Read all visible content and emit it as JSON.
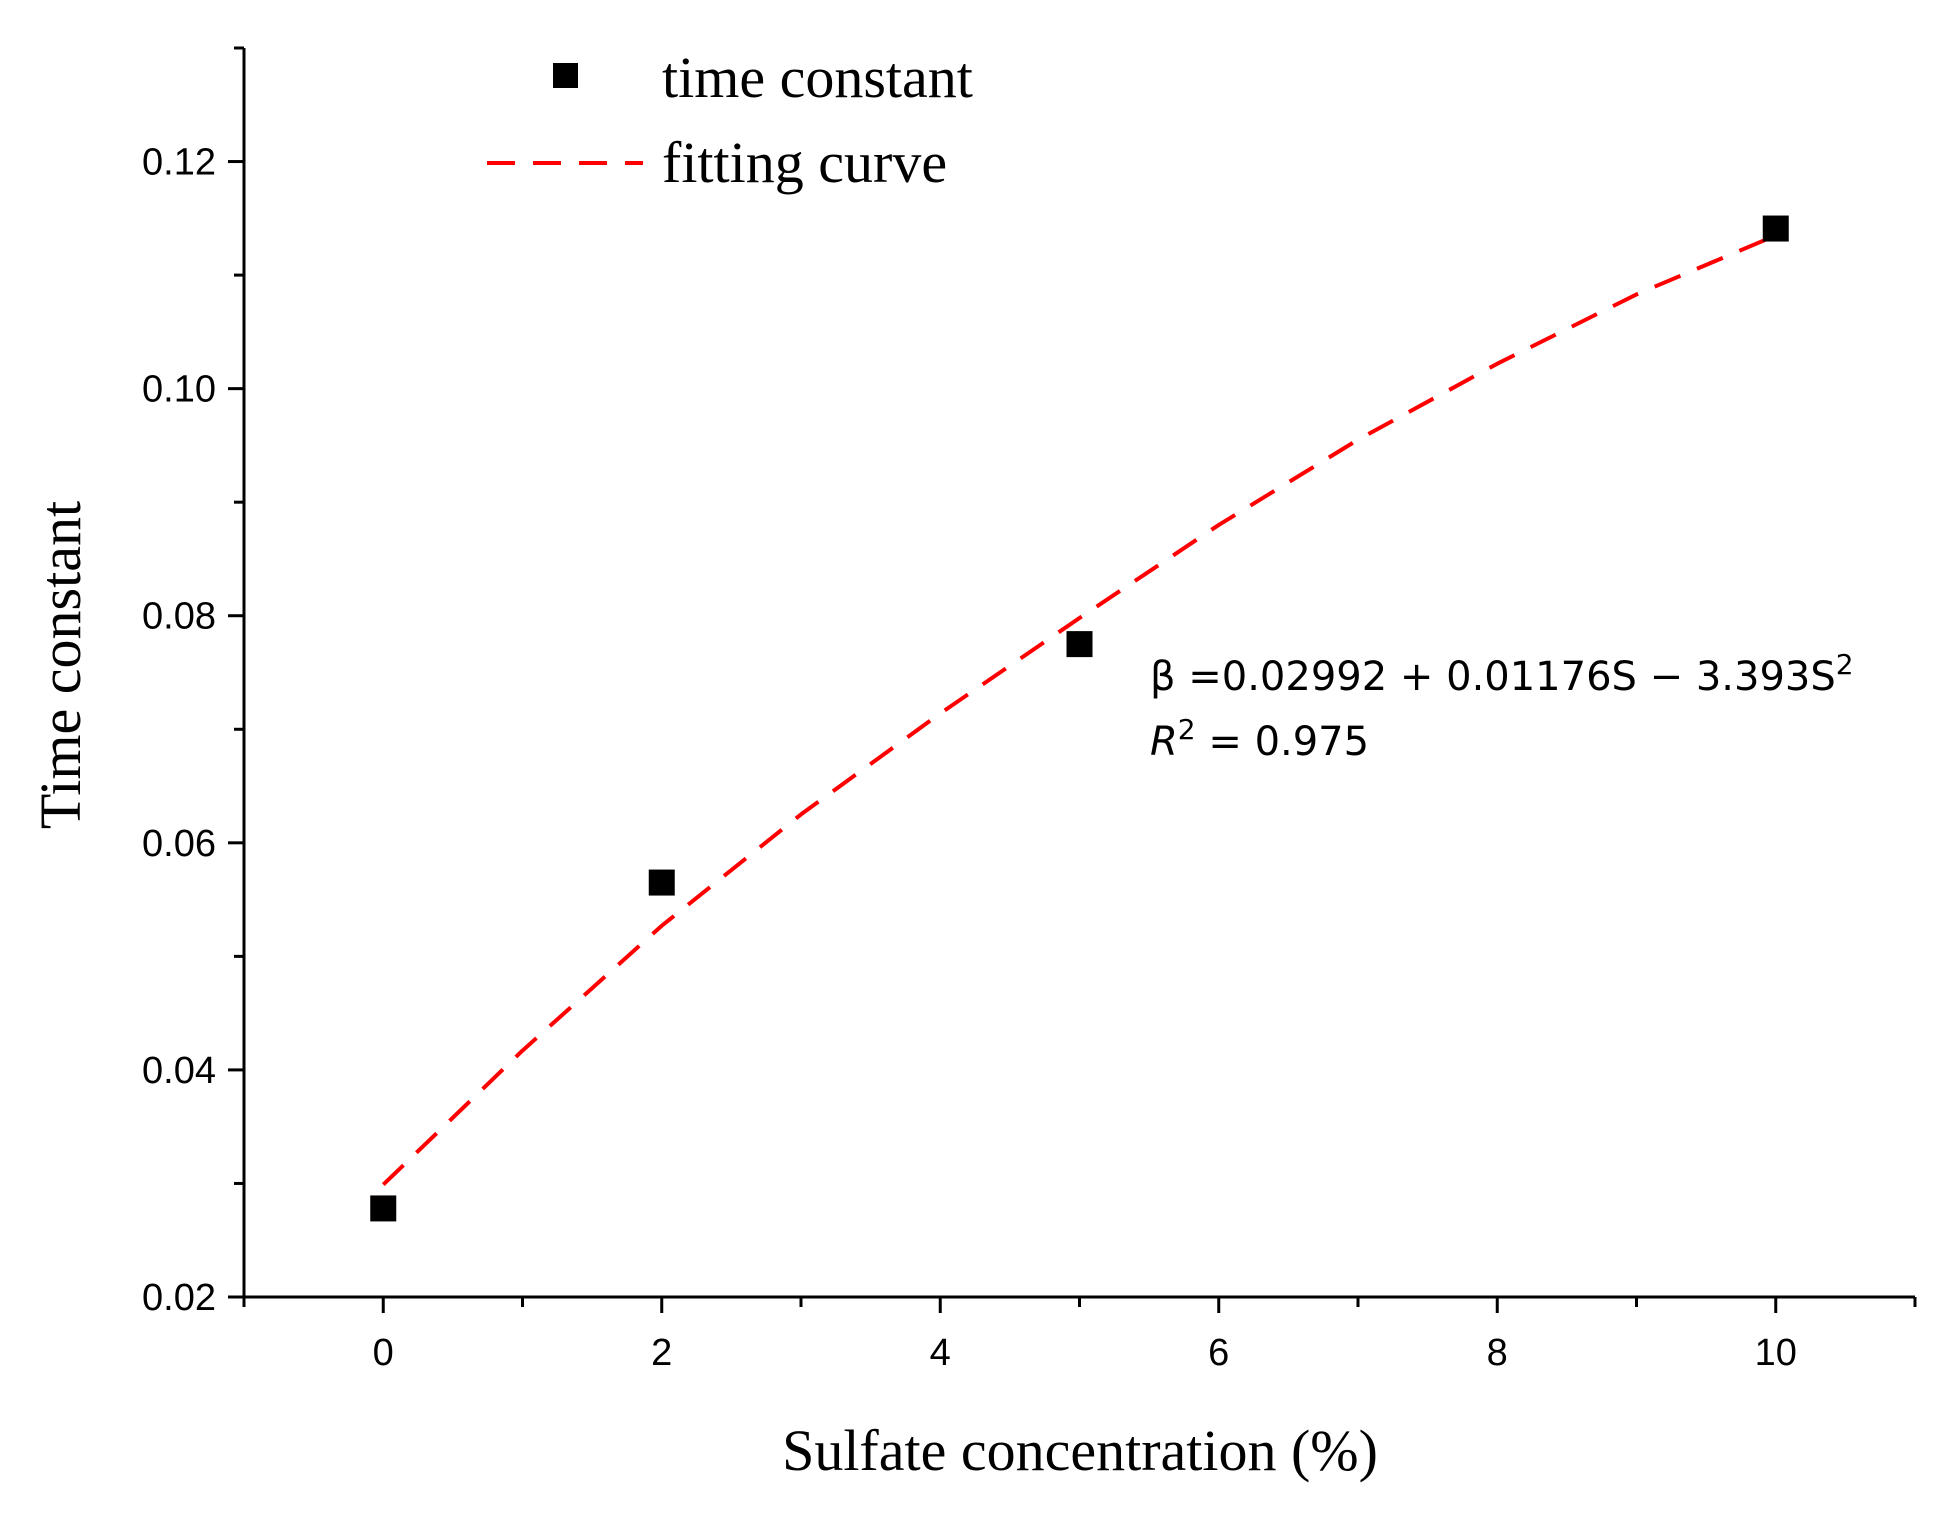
{
  "chart_data": {
    "type": "scatter",
    "title": "",
    "xlabel": "Sulfate concentration (%)",
    "ylabel": "Time constant",
    "xlim": [
      -1,
      11
    ],
    "ylim": [
      0.02,
      0.13
    ],
    "x_ticks": [
      0,
      2,
      4,
      6,
      8,
      10
    ],
    "x_tick_labels": [
      "0",
      "2",
      "4",
      "6",
      "8",
      "10"
    ],
    "y_ticks": [
      0.02,
      0.04,
      0.06,
      0.08,
      0.1,
      0.12
    ],
    "y_tick_labels": [
      "0.02",
      "0.04",
      "0.06",
      "0.08",
      "0.10",
      "0.12"
    ],
    "grid": false,
    "legend_position": "top-left",
    "series": [
      {
        "name": "time constant",
        "kind": "scatter",
        "marker": "square",
        "color": "#000000",
        "x": [
          0,
          2,
          5,
          10
        ],
        "y": [
          0.0278,
          0.0565,
          0.0775,
          0.1141
        ]
      },
      {
        "name": "fitting curve",
        "kind": "line",
        "style": "dashed",
        "color": "#ff0000",
        "x": [
          0,
          1,
          2,
          3,
          4,
          5,
          6,
          7,
          8,
          9,
          10
        ],
        "y": [
          0.0299,
          0.0417,
          0.0527,
          0.0625,
          0.0714,
          0.0798,
          0.088,
          0.0955,
          0.1022,
          0.1083,
          0.1135
        ]
      }
    ],
    "annotations": {
      "equation_main": "β =0.02992 + 0.01176S − 3.393S",
      "equation_sup": "2",
      "r2_label": "R",
      "r2_sup": "2",
      "r2_value": " = 0.975"
    }
  }
}
